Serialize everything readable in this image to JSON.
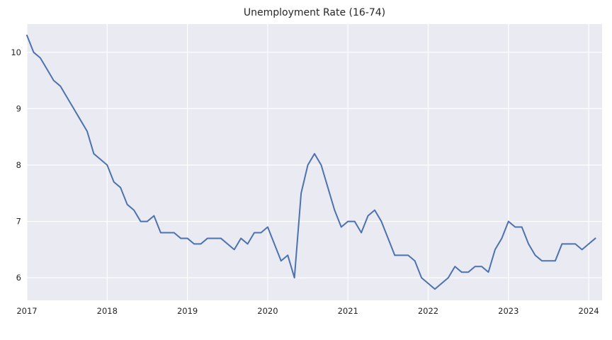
{
  "chart_data": {
    "type": "line",
    "title": "Unemployment Rate (16-74)",
    "xlabel": "",
    "ylabel": "",
    "x_tick_labels": [
      "2017",
      "2018",
      "2019",
      "2020",
      "2021",
      "2022",
      "2023",
      "2024"
    ],
    "y_tick_labels": [
      "6",
      "7",
      "8",
      "9",
      "10"
    ],
    "y_ticks": [
      6,
      7,
      8,
      9,
      10
    ],
    "xlim": [
      "2017-01",
      "2024-03"
    ],
    "ylim": [
      5.6,
      10.5
    ],
    "grid": true,
    "legend": "none",
    "colors": {
      "line": "#4c72b0",
      "plot_background": "#eaeaf2",
      "grid": "#ffffff"
    },
    "series": [
      {
        "x": [
          "2017-01",
          "2017-02",
          "2017-03",
          "2017-04",
          "2017-05",
          "2017-06",
          "2017-07",
          "2017-08",
          "2017-09",
          "2017-10",
          "2017-11",
          "2017-12",
          "2018-01",
          "2018-02",
          "2018-03",
          "2018-04",
          "2018-05",
          "2018-06",
          "2018-07",
          "2018-08",
          "2018-09",
          "2018-10",
          "2018-11",
          "2018-12",
          "2019-01",
          "2019-02",
          "2019-03",
          "2019-04",
          "2019-05",
          "2019-06",
          "2019-07",
          "2019-08",
          "2019-09",
          "2019-10",
          "2019-11",
          "2019-12",
          "2020-01",
          "2020-02",
          "2020-03",
          "2020-04",
          "2020-05",
          "2020-06",
          "2020-07",
          "2020-08",
          "2020-09",
          "2020-10",
          "2020-11",
          "2020-12",
          "2021-01",
          "2021-02",
          "2021-03",
          "2021-04",
          "2021-05",
          "2021-06",
          "2021-07",
          "2021-08",
          "2021-09",
          "2021-10",
          "2021-11",
          "2021-12",
          "2022-01",
          "2022-02",
          "2022-03",
          "2022-04",
          "2022-05",
          "2022-06",
          "2022-07",
          "2022-08",
          "2022-09",
          "2022-10",
          "2022-11",
          "2022-12",
          "2023-01",
          "2023-02",
          "2023-03",
          "2023-04",
          "2023-05",
          "2023-06",
          "2023-07",
          "2023-08",
          "2023-09",
          "2023-10",
          "2023-11",
          "2023-12",
          "2024-01",
          "2024-02"
        ],
        "values": [
          10.3,
          10.0,
          9.9,
          9.7,
          9.5,
          9.4,
          9.2,
          9.0,
          8.8,
          8.6,
          8.2,
          8.1,
          8.0,
          7.7,
          7.6,
          7.3,
          7.2,
          7.0,
          7.0,
          7.1,
          6.8,
          6.8,
          6.8,
          6.7,
          6.7,
          6.6,
          6.6,
          6.7,
          6.7,
          6.7,
          6.6,
          6.5,
          6.7,
          6.6,
          6.8,
          6.8,
          6.9,
          6.6,
          6.3,
          6.4,
          6.0,
          7.5,
          8.0,
          8.2,
          8.0,
          7.6,
          7.2,
          6.9,
          7.0,
          7.0,
          6.8,
          7.1,
          7.2,
          7.0,
          6.7,
          6.4,
          6.4,
          6.4,
          6.3,
          6.0,
          5.9,
          5.8,
          5.9,
          6.0,
          6.2,
          6.1,
          6.1,
          6.2,
          6.2,
          6.1,
          6.5,
          6.7,
          7.0,
          6.9,
          6.9,
          6.6,
          6.4,
          6.3,
          6.3,
          6.3,
          6.6,
          6.6,
          6.6,
          6.5,
          6.6,
          6.7
        ]
      }
    ]
  }
}
